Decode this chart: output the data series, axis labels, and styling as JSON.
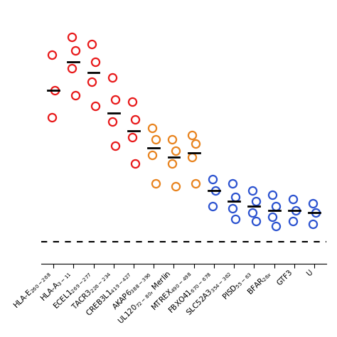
{
  "colors": {
    "red": "#e8191a",
    "orange": "#e8831e",
    "blue": "#2b52d0"
  },
  "dot_groups": [
    {
      "x": 0,
      "points": [
        [
          -0.08,
          0.88
        ],
        [
          0.08,
          0.72
        ],
        [
          -0.08,
          0.6
        ]
      ],
      "color": "red",
      "mean": 0.72
    },
    {
      "x": 1,
      "points": [
        [
          -0.08,
          0.96
        ],
        [
          0.08,
          0.9
        ],
        [
          -0.08,
          0.82
        ],
        [
          0.08,
          0.7
        ]
      ],
      "color": "red",
      "mean": 0.85
    },
    {
      "x": 2,
      "points": [
        [
          -0.08,
          0.93
        ],
        [
          0.08,
          0.85
        ],
        [
          -0.08,
          0.76
        ],
        [
          0.08,
          0.65
        ]
      ],
      "color": "red",
      "mean": 0.8
    },
    {
      "x": 3,
      "points": [
        [
          -0.08,
          0.78
        ],
        [
          0.08,
          0.68
        ],
        [
          -0.08,
          0.58
        ],
        [
          0.08,
          0.47
        ]
      ],
      "color": "red",
      "mean": 0.62
    },
    {
      "x": 4,
      "points": [
        [
          -0.08,
          0.67
        ],
        [
          0.08,
          0.59
        ],
        [
          -0.08,
          0.51
        ],
        [
          0.08,
          0.39
        ]
      ],
      "color": "red",
      "mean": 0.54
    },
    {
      "x": 5,
      "points": [
        [
          -0.08,
          0.55
        ],
        [
          0.08,
          0.5
        ],
        [
          -0.08,
          0.43
        ],
        [
          0.08,
          0.3
        ]
      ],
      "color": "orange",
      "mean": 0.46
    },
    {
      "x": 6,
      "points": [
        [
          -0.08,
          0.5
        ],
        [
          0.08,
          0.45
        ],
        [
          -0.08,
          0.39
        ],
        [
          0.08,
          0.29
        ]
      ],
      "color": "orange",
      "mean": 0.42
    },
    {
      "x": 7,
      "points": [
        [
          -0.08,
          0.52
        ],
        [
          0.08,
          0.48
        ],
        [
          -0.08,
          0.42
        ],
        [
          0.08,
          0.3
        ]
      ],
      "color": "orange",
      "mean": 0.44
    },
    {
      "x": 8,
      "points": [
        [
          -0.08,
          0.32
        ],
        [
          0.08,
          0.27
        ],
        [
          -0.08,
          0.2
        ]
      ],
      "color": "blue",
      "mean": 0.27
    },
    {
      "x": 9,
      "points": [
        [
          -0.08,
          0.3
        ],
        [
          0.08,
          0.24
        ],
        [
          -0.08,
          0.19
        ],
        [
          0.08,
          0.14
        ]
      ],
      "color": "blue",
      "mean": 0.22
    },
    {
      "x": 10,
      "points": [
        [
          -0.08,
          0.27
        ],
        [
          0.08,
          0.22
        ],
        [
          -0.08,
          0.17
        ],
        [
          0.08,
          0.13
        ]
      ],
      "color": "blue",
      "mean": 0.2
    },
    {
      "x": 11,
      "points": [
        [
          -0.08,
          0.25
        ],
        [
          0.08,
          0.2
        ],
        [
          -0.08,
          0.15
        ],
        [
          0.08,
          0.11
        ]
      ],
      "color": "blue",
      "mean": 0.18
    },
    {
      "x": 12,
      "points": [
        [
          -0.08,
          0.23
        ],
        [
          0.08,
          0.18
        ],
        [
          -0.08,
          0.13
        ]
      ],
      "color": "blue",
      "mean": 0.18
    },
    {
      "x": 13,
      "points": [
        [
          -0.08,
          0.21
        ],
        [
          0.08,
          0.17
        ],
        [
          -0.08,
          0.12
        ]
      ],
      "color": "blue",
      "mean": 0.17
    }
  ],
  "dashed_line_y": 0.04,
  "marker_size": 8,
  "marker_linewidth": 1.6,
  "mean_linewidth": 2.0,
  "mean_line_halfwidth": 0.28,
  "xlim": [
    -0.6,
    13.6
  ],
  "ylim": [
    -0.06,
    1.08
  ],
  "labels": [
    "HLA-E$_{260-268}$",
    "HLA-A$_{3-11}$",
    "ECEL1$_{269-277}$",
    "TACR3$_{226-234}$",
    "CREB3L1$_{419-427}$",
    "AKAP6$_{388-396}$",
    "UL120$_{72-80}$, Merlin",
    "MTREX$_{490-498}$",
    "FBXO41$_{670-678}$",
    "SLC52A3$_{354-362}$",
    "PISD$_{55-63}$",
    "BFAR$_{26x}$",
    "GTF3",
    "U"
  ],
  "label_fontsize": 7.5,
  "figsize": [
    4.74,
    4.74
  ],
  "dpi": 100
}
